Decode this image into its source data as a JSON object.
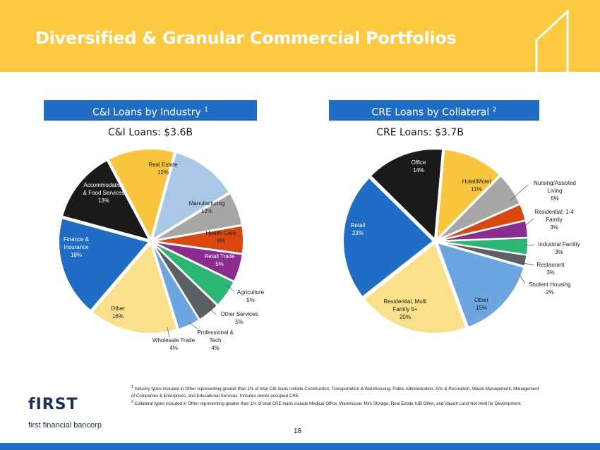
{
  "header": {
    "title": "Diversified & Granular Commercial Portfolios"
  },
  "left_panel": {
    "title": "C&I Loans by Industry",
    "title_sup": "1",
    "chart_title": "C&I Loans: $3.6B"
  },
  "right_panel": {
    "title": "CRE Loans by Collateral",
    "title_sup": "2",
    "chart_title": "CRE Loans: $3.7B"
  },
  "chart_data": [
    {
      "type": "pie",
      "title": "C&I Loans: $3.6B",
      "slices": [
        {
          "label": "Real Estate",
          "value": 12,
          "color": "#f8c53c"
        },
        {
          "label": "Manufacturing",
          "value": 12,
          "color": "#a9c7e6"
        },
        {
          "label": "Health Care",
          "value": 6,
          "color": "#a6a6a6"
        },
        {
          "label": "Retail Trade",
          "value": 5,
          "color": "#d9480f"
        },
        {
          "label": "Agriculture",
          "value": 5,
          "color": "#8a2d8e"
        },
        {
          "label": "Other Services",
          "value": 5,
          "color": "#2bb673"
        },
        {
          "label": "Professional & Tech",
          "value": 4,
          "color": "#5c5f63"
        },
        {
          "label": "Wholesale Trade",
          "value": 4,
          "color": "#6ca6e0"
        },
        {
          "label": "Other",
          "value": 16,
          "color": "#fbe08c"
        },
        {
          "label": "Finance & Insurance",
          "value": 18,
          "color": "#1f6dc6"
        },
        {
          "label": "Accommodation & Food Services",
          "value": 13,
          "color": "#1a1a1a"
        }
      ]
    },
    {
      "type": "pie",
      "title": "CRE Loans: $3.7B",
      "slices": [
        {
          "label": "Hotel/Motel",
          "value": 11,
          "color": "#f8c53c"
        },
        {
          "label": "Nursing/Assisted Living",
          "value": 6,
          "color": "#a6a6a6"
        },
        {
          "label": "Residential, 1-4 Family",
          "value": 3,
          "color": "#d9480f"
        },
        {
          "label": "Industrial Facility",
          "value": 3,
          "color": "#8a2d8e"
        },
        {
          "label": "Restaurant",
          "value": 3,
          "color": "#2bb673"
        },
        {
          "label": "Student Housing",
          "value": 2,
          "color": "#5c5f63"
        },
        {
          "label": "Other",
          "value": 15,
          "color": "#6ca6e0"
        },
        {
          "label": "Residential, Multi Family 5+",
          "value": 20,
          "color": "#fbe08c"
        },
        {
          "label": "Retail",
          "value": 23,
          "color": "#1f6dc6"
        },
        {
          "label": "Office",
          "value": 14,
          "color": "#1a1a1a"
        }
      ]
    }
  ],
  "labels": {
    "ci": {
      "real_estate": [
        "Real Estate",
        "12%"
      ],
      "manufacturing": [
        "Manufacturing",
        "12%"
      ],
      "health_care": [
        "Health Care",
        "6%"
      ],
      "retail_trade": [
        "Retail Trade",
        "5%"
      ],
      "agriculture": [
        "Agriculture",
        "5%"
      ],
      "other_services": [
        "Other Services",
        "5%"
      ],
      "professional_tech": [
        "Professional &",
        "Tech",
        "4%"
      ],
      "wholesale_trade": [
        "Wholesale Trade",
        "4%"
      ],
      "other": [
        "Other",
        "16%"
      ],
      "finance_insurance": [
        "Finance &",
        "Insurance",
        "18%"
      ],
      "accommodation": [
        "Accommodation",
        "& Food Services",
        "13%"
      ]
    },
    "cre": {
      "office": [
        "Office",
        "14%"
      ],
      "hotel_motel": [
        "Hotel/Motel",
        "11%"
      ],
      "nursing": [
        "Nursing/Assisted",
        "Living",
        "6%"
      ],
      "residential_14": [
        "Residential, 1-4",
        "Family",
        "3%"
      ],
      "industrial": [
        "Industrial Facility",
        "3%"
      ],
      "restaurant": [
        "Restaurant",
        "3%"
      ],
      "student_housing": [
        "Student Housing",
        "2%"
      ],
      "other": [
        "Other",
        "15%"
      ],
      "residential_multi": [
        "Residential, Multi",
        "Family 5+",
        "20%"
      ],
      "retail": [
        "Retail",
        "23%"
      ]
    }
  },
  "footnotes": {
    "note1_mark": "1",
    "note1": "Industry types included in Other representing greater than 1% of total C&I loans include Construction, Transportation & Warehousing, Public Administration, Arts & Recreation, Waste Management, Management of Companies & Enterprises, and Educational Services. Includes owner-occupied CRE.",
    "note2_mark": "2",
    "note2": "Collateral types included in Other representing greater than 1% of total CRE loans include Medical Office, Warehouse, Mini Storage, Real Estate IUB Other, and Vacant Land Not Held for Development."
  },
  "page_number": "18",
  "logo": {
    "word": "fIRST",
    "subtitle": "first financial bancorp"
  },
  "colors": {
    "header_bg": "#fcc93f",
    "accent_blue": "#1f6dc6",
    "logo_navy": "#1c2f5e"
  }
}
